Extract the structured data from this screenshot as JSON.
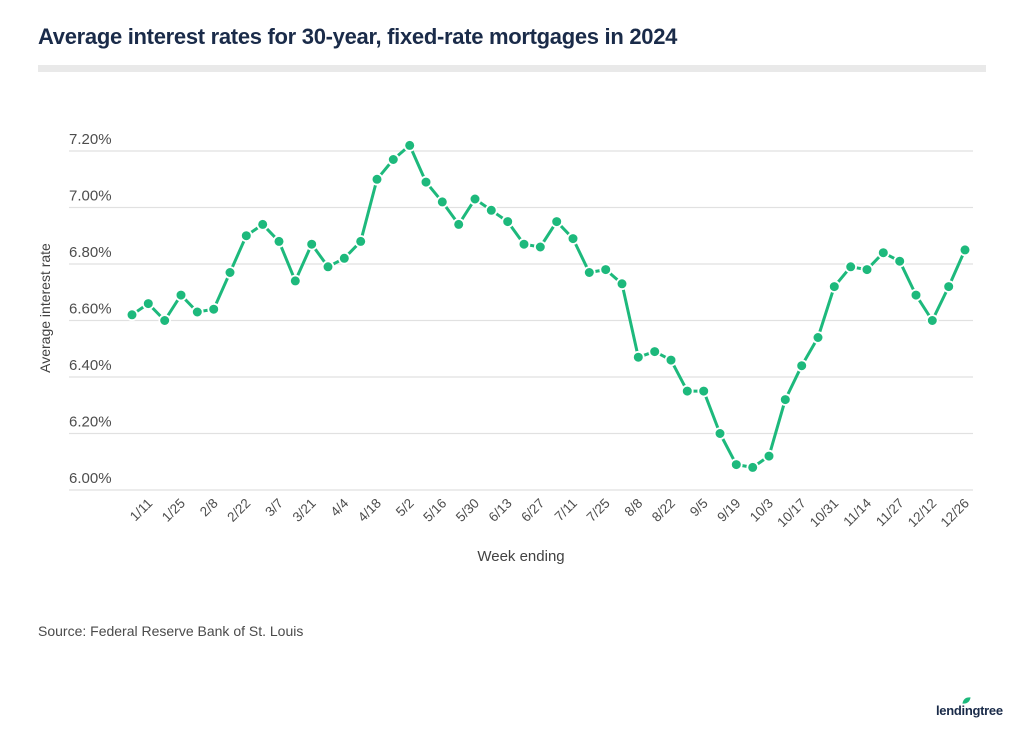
{
  "header": {
    "title": "Average interest rates for 30-year, fixed-rate mortgages in 2024"
  },
  "footer": {
    "source": "Source: Federal Reserve Bank of St. Louis",
    "logo_text": "lendingtree"
  },
  "colors": {
    "accent_green": "#1db97c",
    "brand_navy": "#1a2b49",
    "gridline": "#e1e1e1",
    "axis_tick_text": "#4d4d4d",
    "axis_title_text": "#424242"
  },
  "chart_data": {
    "type": "line",
    "title": "Average interest rates for 30-year, fixed-rate mortgages in 2024",
    "xlabel": "Week ending",
    "ylabel": "Average interest rate",
    "x": [
      "1/4",
      "1/11",
      "1/18",
      "1/25",
      "2/1",
      "2/8",
      "2/15",
      "2/22",
      "2/29",
      "3/7",
      "3/14",
      "3/21",
      "3/28",
      "4/4",
      "4/11",
      "4/18",
      "4/25",
      "5/2",
      "5/9",
      "5/16",
      "5/23",
      "5/30",
      "6/6",
      "6/13",
      "6/20",
      "6/27",
      "7/3",
      "7/11",
      "7/18",
      "7/25",
      "8/1",
      "8/8",
      "8/15",
      "8/22",
      "8/29",
      "9/5",
      "9/12",
      "9/19",
      "9/26",
      "10/3",
      "10/10",
      "10/17",
      "10/24",
      "10/31",
      "11/7",
      "11/14",
      "11/21",
      "11/27",
      "12/5",
      "12/12",
      "12/19",
      "12/26"
    ],
    "values": [
      6.62,
      6.66,
      6.6,
      6.69,
      6.63,
      6.64,
      6.77,
      6.9,
      6.94,
      6.88,
      6.74,
      6.87,
      6.79,
      6.82,
      6.88,
      7.1,
      7.17,
      7.22,
      7.09,
      7.02,
      6.94,
      7.03,
      6.99,
      6.95,
      6.87,
      6.86,
      6.95,
      6.89,
      6.77,
      6.78,
      6.73,
      6.47,
      6.49,
      6.46,
      6.35,
      6.35,
      6.2,
      6.09,
      6.08,
      6.12,
      6.32,
      6.44,
      6.54,
      6.72,
      6.79,
      6.78,
      6.84,
      6.81,
      6.69,
      6.6,
      6.72,
      6.85
    ],
    "x_tick_labels": [
      "1/11",
      "1/25",
      "2/8",
      "2/22",
      "3/7",
      "3/21",
      "4/4",
      "4/18",
      "5/2",
      "5/16",
      "5/30",
      "6/13",
      "6/27",
      "7/11",
      "7/25",
      "8/8",
      "8/22",
      "9/5",
      "9/19",
      "10/3",
      "10/17",
      "10/31",
      "11/14",
      "11/27",
      "12/12",
      "12/26"
    ],
    "x_tick_every": 2,
    "y_ticks": [
      6.0,
      6.2,
      6.4,
      6.6,
      6.8,
      7.0,
      7.2
    ],
    "y_tick_format": "percent2",
    "ylim": [
      6.0,
      7.2
    ],
    "grid": "horizontal",
    "legend": "none",
    "marker": "circle",
    "line_color": "#1db97c"
  }
}
